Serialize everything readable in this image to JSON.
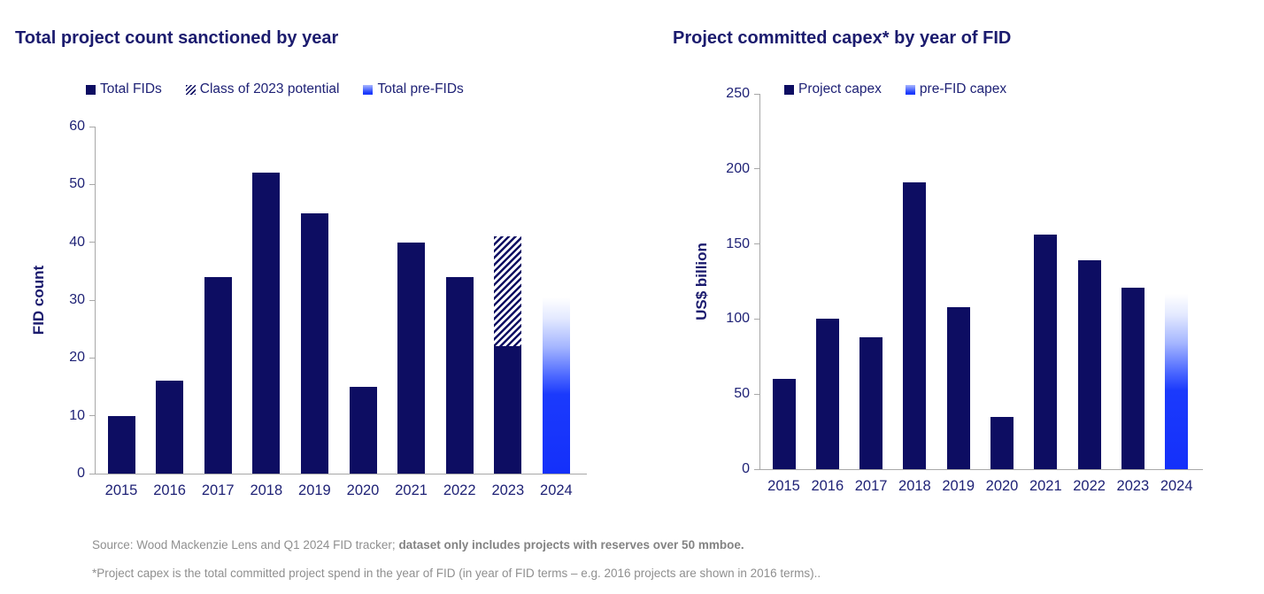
{
  "footer": {
    "line1_normal": "Source: Wood Mackenzie Lens and Q1 2024 FID tracker; ",
    "line1_bold": "dataset only includes projects with reserves over 50 mmboe.",
    "line2": "*Project capex is the total committed project spend in the year of FID (in year of FID terms – e.g. 2016 projects are shown in 2016 terms).."
  },
  "colors": {
    "bar_navy": "#0d0d62",
    "bar_bright_blue": "#1a3cfa",
    "text_navy": "#1b1b6e",
    "axis_gray": "#a8a8a8",
    "footer_gray": "#8f8f8f"
  },
  "chart_data": [
    {
      "type": "bar",
      "title": "Total project count sanctioned by year",
      "ylabel": "FID count",
      "xlabel": "",
      "ylim": [
        0,
        60
      ],
      "ytick_step": 10,
      "grid": false,
      "legend_position": "top",
      "categories": [
        "2015",
        "2016",
        "2017",
        "2018",
        "2019",
        "2020",
        "2021",
        "2022",
        "2023",
        "2024"
      ],
      "series": [
        {
          "name": "Total FIDs",
          "style": "solid-navy",
          "values": [
            10,
            16,
            34,
            52,
            45,
            15,
            40,
            34,
            22,
            0
          ]
        },
        {
          "name": "Class of 2023 potential",
          "style": "hatch",
          "values": [
            0,
            0,
            0,
            0,
            0,
            0,
            0,
            0,
            19,
            0
          ]
        },
        {
          "name": "Total pre-FIDs",
          "style": "gradient-blue",
          "values": [
            0,
            0,
            0,
            0,
            0,
            0,
            0,
            0,
            0,
            30.5
          ]
        }
      ],
      "annotations": [
        "2023 total with potential reaches 41",
        "2024 bar is pre-FID outlook"
      ]
    },
    {
      "type": "bar",
      "title": "Project committed capex* by year of FID",
      "ylabel": "US$ billion",
      "xlabel": "",
      "ylim": [
        0,
        250
      ],
      "ytick_step": 50,
      "grid": false,
      "legend_position": "top",
      "categories": [
        "2015",
        "2016",
        "2017",
        "2018",
        "2019",
        "2020",
        "2021",
        "2022",
        "2023",
        "2024"
      ],
      "series": [
        {
          "name": "Project capex",
          "style": "solid-navy",
          "values": [
            60,
            100,
            88,
            191,
            108,
            35,
            156,
            139,
            121,
            0
          ]
        },
        {
          "name": "pre-FID capex",
          "style": "gradient-blue",
          "values": [
            0,
            0,
            0,
            0,
            0,
            0,
            0,
            0,
            0,
            117
          ]
        }
      ],
      "annotations": [
        "2024 bar is pre-FID capex outlook"
      ]
    }
  ]
}
